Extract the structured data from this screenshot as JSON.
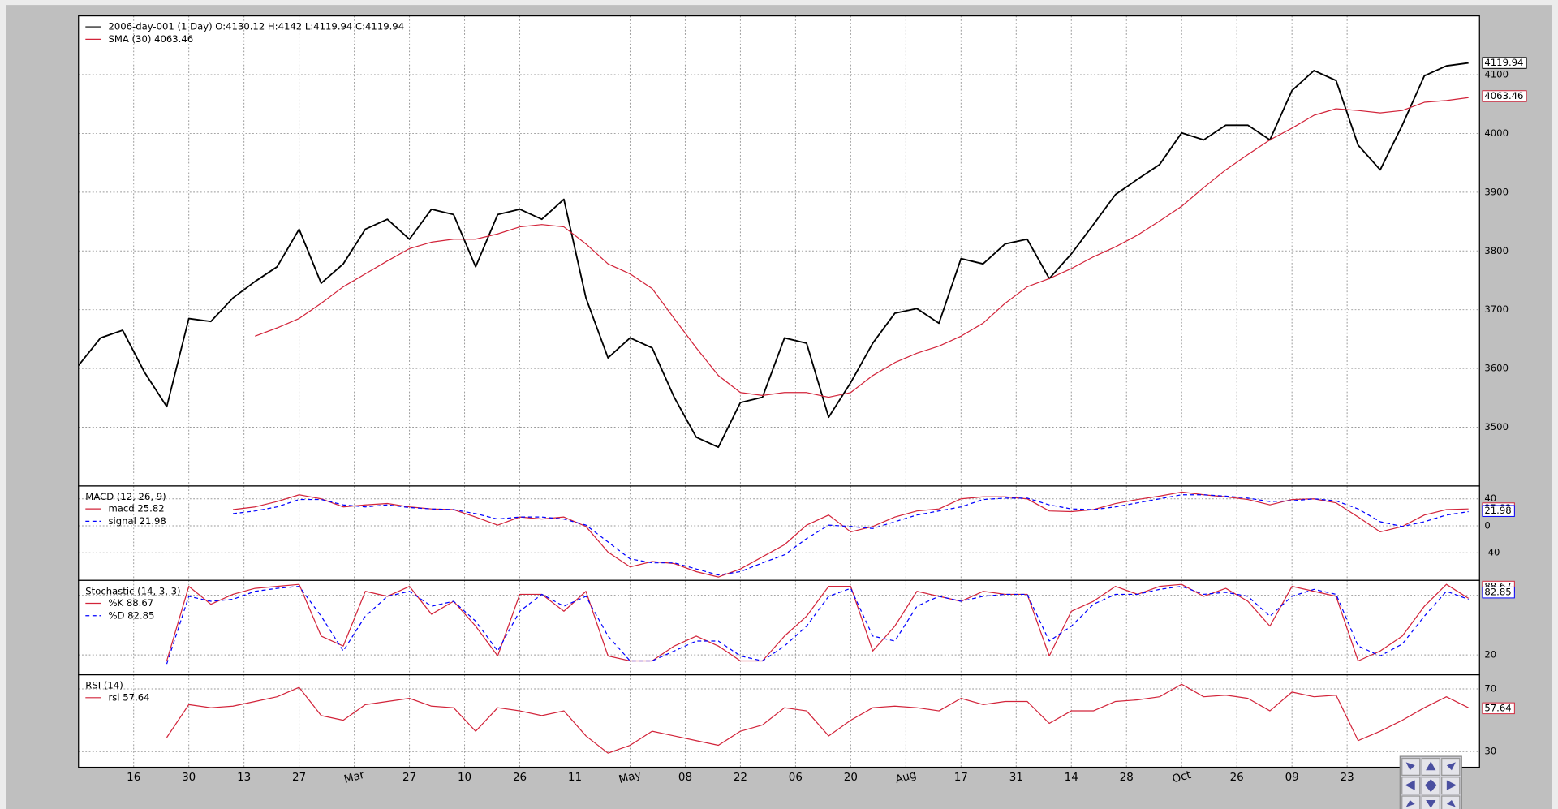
{
  "chart_data": [
    {
      "type": "line",
      "grid": true,
      "x": [
        0,
        4,
        8,
        12,
        16,
        20,
        24,
        28,
        32,
        36,
        40,
        44,
        48,
        52,
        56,
        60,
        64,
        68,
        72,
        76,
        80,
        84,
        88,
        92,
        96,
        100,
        104,
        108,
        112,
        116,
        120,
        124,
        128,
        132,
        136,
        140,
        144,
        148,
        152,
        156,
        160,
        164,
        168,
        172,
        176,
        180,
        184,
        188,
        192,
        196,
        200,
        204,
        208,
        212,
        216,
        220,
        224,
        228,
        232,
        236,
        240,
        244,
        248,
        252
      ],
      "xlim": [
        0,
        254
      ],
      "ylim": [
        3400,
        4200
      ],
      "yticks": [
        3500,
        3600,
        3700,
        3800,
        3900,
        4000,
        4100
      ],
      "series": [
        {
          "name": "2006-day-001 (1 Day) O:4130.12 H:4142 L:4119.94 C:4119.94",
          "color": "#000000",
          "style": "solid",
          "width": 1.5,
          "last_value": 4119.94,
          "values": [
            3605,
            3652,
            3665,
            3593,
            3535,
            3685,
            3680,
            3720,
            3748,
            3773,
            3837,
            3745,
            3778,
            3837,
            3854,
            3820,
            3871,
            3862,
            3773,
            3862,
            3871,
            3854,
            3888,
            3720,
            3618,
            3652,
            3635,
            3551,
            3483,
            3466,
            3542,
            3551,
            3652,
            3643,
            3517,
            3576,
            3643,
            3694,
            3702,
            3677,
            3787,
            3778,
            3812,
            3820,
            3753,
            3795,
            3845,
            3896,
            3922,
            3947,
            4001,
            3989,
            4014,
            4014,
            3989,
            4073,
            4107,
            4090,
            3980,
            3938,
            4014,
            4098,
            4115,
            4120
          ]
        },
        {
          "name": "SMA (30) 4063.46",
          "color": "#d2243a",
          "style": "solid",
          "width": 1,
          "last_value": 4063.46,
          "values": [
            null,
            null,
            null,
            null,
            null,
            null,
            null,
            null,
            3655,
            3669,
            3685,
            3711,
            3739,
            3761,
            3783,
            3804,
            3815,
            3820,
            3820,
            3829,
            3841,
            3845,
            3841,
            3812,
            3778,
            3761,
            3736,
            3685,
            3635,
            3588,
            3559,
            3554,
            3559,
            3559,
            3551,
            3559,
            3588,
            3610,
            3626,
            3638,
            3655,
            3677,
            3711,
            3739,
            3753,
            3770,
            3790,
            3807,
            3827,
            3851,
            3876,
            3908,
            3938,
            3964,
            3989,
            4009,
            4031,
            4042,
            4039,
            4035,
            4039,
            4053,
            4056,
            4061
          ]
        }
      ]
    },
    {
      "type": "line",
      "grid": true,
      "title": "MACD (12, 26, 9)",
      "x": [
        0,
        4,
        8,
        12,
        16,
        20,
        24,
        28,
        32,
        36,
        40,
        44,
        48,
        52,
        56,
        60,
        64,
        68,
        72,
        76,
        80,
        84,
        88,
        92,
        96,
        100,
        104,
        108,
        112,
        116,
        120,
        124,
        128,
        132,
        136,
        140,
        144,
        148,
        152,
        156,
        160,
        164,
        168,
        172,
        176,
        180,
        184,
        188,
        192,
        196,
        200,
        204,
        208,
        212,
        216,
        220,
        224,
        228,
        232,
        236,
        240,
        244,
        248,
        252
      ],
      "xlim": [
        0,
        254
      ],
      "ylim": [
        -81,
        59
      ],
      "yticks": [
        -40,
        0,
        40
      ],
      "series": [
        {
          "name": "macd 25.82",
          "color": "#d2243a",
          "style": "solid",
          "width": 1,
          "last_value": 25.82,
          "values": [
            null,
            null,
            null,
            null,
            null,
            null,
            null,
            24,
            28,
            36,
            46,
            40,
            28,
            31,
            33,
            28,
            25,
            24,
            13,
            1,
            13,
            10,
            13,
            -1,
            -39,
            -61,
            -53,
            -56,
            -68,
            -76,
            -64,
            -46,
            -28,
            1,
            16,
            -9,
            -1,
            13,
            22,
            25,
            40,
            43,
            43,
            40,
            22,
            21,
            24,
            33,
            39,
            44,
            50,
            46,
            43,
            39,
            31,
            39,
            40,
            34,
            13,
            -9,
            -1,
            16,
            24,
            25
          ]
        },
        {
          "name": "signal 21.98",
          "color": "#0000ff",
          "style": "dashed",
          "width": 1,
          "last_value": 21.98,
          "values": [
            null,
            null,
            null,
            null,
            null,
            null,
            null,
            18,
            22,
            28,
            39,
            39,
            31,
            28,
            31,
            27,
            25,
            24,
            18,
            10,
            13,
            13,
            10,
            1,
            -24,
            -49,
            -55,
            -55,
            -64,
            -73,
            -68,
            -55,
            -43,
            -19,
            1,
            -1,
            -4,
            6,
            16,
            22,
            28,
            39,
            41,
            41,
            31,
            25,
            24,
            28,
            34,
            40,
            46,
            46,
            44,
            41,
            36,
            37,
            40,
            37,
            25,
            6,
            -1,
            6,
            16,
            21
          ]
        }
      ]
    },
    {
      "type": "line",
      "grid": true,
      "title": "Stochastic (14, 3, 3)",
      "x": [
        0,
        4,
        8,
        12,
        16,
        20,
        24,
        28,
        32,
        36,
        40,
        44,
        48,
        52,
        56,
        60,
        64,
        68,
        72,
        76,
        80,
        84,
        88,
        92,
        96,
        100,
        104,
        108,
        112,
        116,
        120,
        124,
        128,
        132,
        136,
        140,
        144,
        148,
        152,
        156,
        160,
        164,
        168,
        172,
        176,
        180,
        184,
        188,
        192,
        196,
        200,
        204,
        208,
        212,
        216,
        220,
        224,
        228,
        232,
        236,
        240,
        244,
        248,
        252
      ],
      "xlim": [
        0,
        254
      ],
      "ylim": [
        0,
        95
      ],
      "yticks": [
        20,
        80
      ],
      "series": [
        {
          "name": "%K 88.67",
          "color": "#d2243a",
          "style": "solid",
          "width": 1,
          "last_value": 88.67,
          "values": [
            null,
            null,
            null,
            null,
            14,
            89,
            71,
            81,
            87,
            89,
            91,
            39,
            29,
            84,
            79,
            89,
            61,
            74,
            49,
            19,
            81,
            81,
            64,
            84,
            19,
            14,
            14,
            29,
            39,
            29,
            14,
            14,
            39,
            59,
            89,
            89,
            24,
            49,
            84,
            79,
            74,
            84,
            81,
            81,
            19,
            64,
            74,
            89,
            81,
            89,
            91,
            79,
            87,
            74,
            49,
            89,
            84,
            79,
            14,
            24,
            39,
            69,
            91,
            77
          ]
        },
        {
          "name": "%D 82.85",
          "color": "#0000ff",
          "style": "dashed",
          "width": 1,
          "last_value": 82.85,
          "values": [
            null,
            null,
            null,
            null,
            11,
            79,
            74,
            76,
            84,
            87,
            89,
            59,
            24,
            59,
            79,
            84,
            69,
            74,
            54,
            24,
            64,
            81,
            69,
            79,
            39,
            14,
            14,
            24,
            34,
            34,
            19,
            14,
            29,
            49,
            79,
            87,
            39,
            34,
            69,
            79,
            74,
            79,
            81,
            81,
            34,
            49,
            71,
            81,
            81,
            86,
            89,
            81,
            83,
            79,
            59,
            79,
            86,
            81,
            29,
            19,
            31,
            59,
            84,
            76
          ]
        }
      ]
    },
    {
      "type": "line",
      "grid": true,
      "title": "RSI (14)",
      "x": [
        0,
        4,
        8,
        12,
        16,
        20,
        24,
        28,
        32,
        36,
        40,
        44,
        48,
        52,
        56,
        60,
        64,
        68,
        72,
        76,
        80,
        84,
        88,
        92,
        96,
        100,
        104,
        108,
        112,
        116,
        120,
        124,
        128,
        132,
        136,
        140,
        144,
        148,
        152,
        156,
        160,
        164,
        168,
        172,
        176,
        180,
        184,
        188,
        192,
        196,
        200,
        204,
        208,
        212,
        216,
        220,
        224,
        228,
        232,
        236,
        240,
        244,
        248,
        252
      ],
      "xlim": [
        0,
        254
      ],
      "ylim": [
        20,
        79
      ],
      "yticks": [
        30,
        70
      ],
      "xticks": [
        {
          "value": 10,
          "label": "16"
        },
        {
          "value": 20,
          "label": "30"
        },
        {
          "value": 30,
          "label": "13"
        },
        {
          "value": 40,
          "label": "27"
        },
        {
          "value": 50,
          "label": "Mar"
        },
        {
          "value": 60,
          "label": "27"
        },
        {
          "value": 70,
          "label": "10"
        },
        {
          "value": 80,
          "label": "26"
        },
        {
          "value": 90,
          "label": "11"
        },
        {
          "value": 100,
          "label": "May"
        },
        {
          "value": 110,
          "label": "08"
        },
        {
          "value": 120,
          "label": "22"
        },
        {
          "value": 130,
          "label": "06"
        },
        {
          "value": 140,
          "label": "20"
        },
        {
          "value": 150,
          "label": "Aug"
        },
        {
          "value": 160,
          "label": "17"
        },
        {
          "value": 170,
          "label": "31"
        },
        {
          "value": 180,
          "label": "14"
        },
        {
          "value": 190,
          "label": "28"
        },
        {
          "value": 200,
          "label": "Oct"
        },
        {
          "value": 210,
          "label": "26"
        },
        {
          "value": 220,
          "label": "09"
        },
        {
          "value": 230,
          "label": "23"
        }
      ],
      "series": [
        {
          "name": "rsi 57.64",
          "color": "#d2243a",
          "style": "solid",
          "width": 1,
          "last_value": 57.64,
          "values": [
            null,
            null,
            null,
            null,
            39,
            60,
            58,
            59,
            62,
            65,
            71,
            53,
            50,
            60,
            62,
            64,
            59,
            58,
            43,
            58,
            56,
            53,
            56,
            40,
            29,
            34,
            43,
            40,
            37,
            34,
            43,
            47,
            58,
            56,
            40,
            50,
            58,
            59,
            58,
            56,
            64,
            60,
            62,
            62,
            48,
            56,
            56,
            62,
            63,
            65,
            73,
            65,
            66,
            64,
            56,
            68,
            65,
            66,
            37,
            43,
            50,
            58,
            65,
            58
          ]
        }
      ]
    }
  ]
}
